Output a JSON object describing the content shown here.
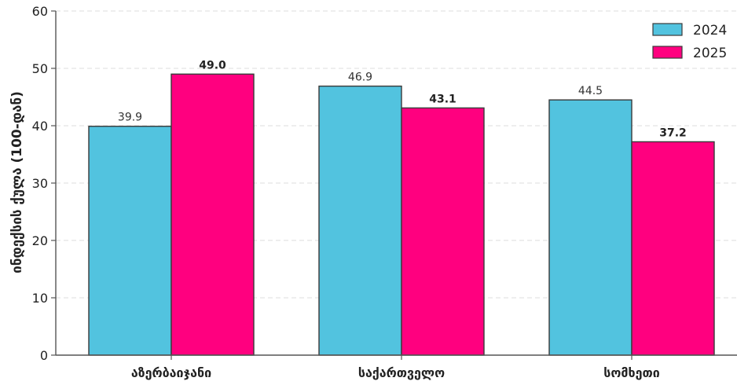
{
  "chart_data": {
    "type": "bar",
    "categories": [
      "აზერბაიჯანი",
      "საქართველო",
      "სომხეთი"
    ],
    "series": [
      {
        "name": "2024",
        "values": [
          39.9,
          46.9,
          44.5
        ],
        "color": "#52c3df",
        "label_weight": "normal"
      },
      {
        "name": "2025",
        "values": [
          49.0,
          43.1,
          37.2
        ],
        "color": "#ff007f",
        "label_weight": "bold"
      }
    ],
    "value_labels": {
      "2024": [
        "39.9",
        "46.9",
        "44.5"
      ],
      "2025": [
        "49.0",
        "43.1",
        "37.2"
      ]
    },
    "title": "",
    "xlabel": "",
    "ylabel": "ინდექსის ქულა (100-დან)",
    "ylim": [
      0,
      60
    ],
    "yticks": [
      0,
      10,
      20,
      30,
      40,
      50,
      60
    ],
    "grid": "y-dashed",
    "legend_position": "top-right"
  },
  "colors": {
    "bar_edge": "#3a3a3a",
    "grid": "#dddddd",
    "axis": "#555555"
  }
}
